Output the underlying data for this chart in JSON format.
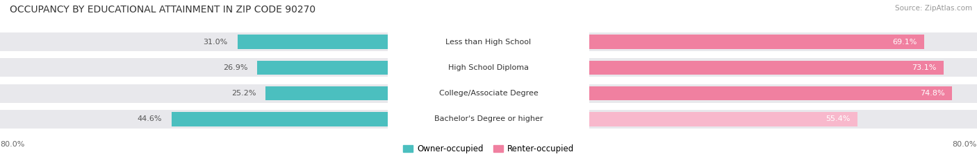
{
  "title": "OCCUPANCY BY EDUCATIONAL ATTAINMENT IN ZIP CODE 90270",
  "source": "Source: ZipAtlas.com",
  "categories": [
    "Less than High School",
    "High School Diploma",
    "College/Associate Degree",
    "Bachelor's Degree or higher"
  ],
  "owner_values": [
    31.0,
    26.9,
    25.2,
    44.6
  ],
  "renter_values": [
    69.1,
    73.1,
    74.8,
    55.4
  ],
  "owner_color": "#4bbfbf",
  "renter_color": "#f080a0",
  "renter_color_light": "#f8b8cc",
  "bar_bg_color": "#e8e8ec",
  "owner_label": "Owner-occupied",
  "renter_label": "Renter-occupied",
  "x_max": 80.0,
  "x_axis_label": "80.0%",
  "title_fontsize": 10,
  "source_fontsize": 7.5,
  "bar_label_fontsize": 8,
  "category_fontsize": 8,
  "legend_fontsize": 8.5,
  "background_color": "#ffffff"
}
